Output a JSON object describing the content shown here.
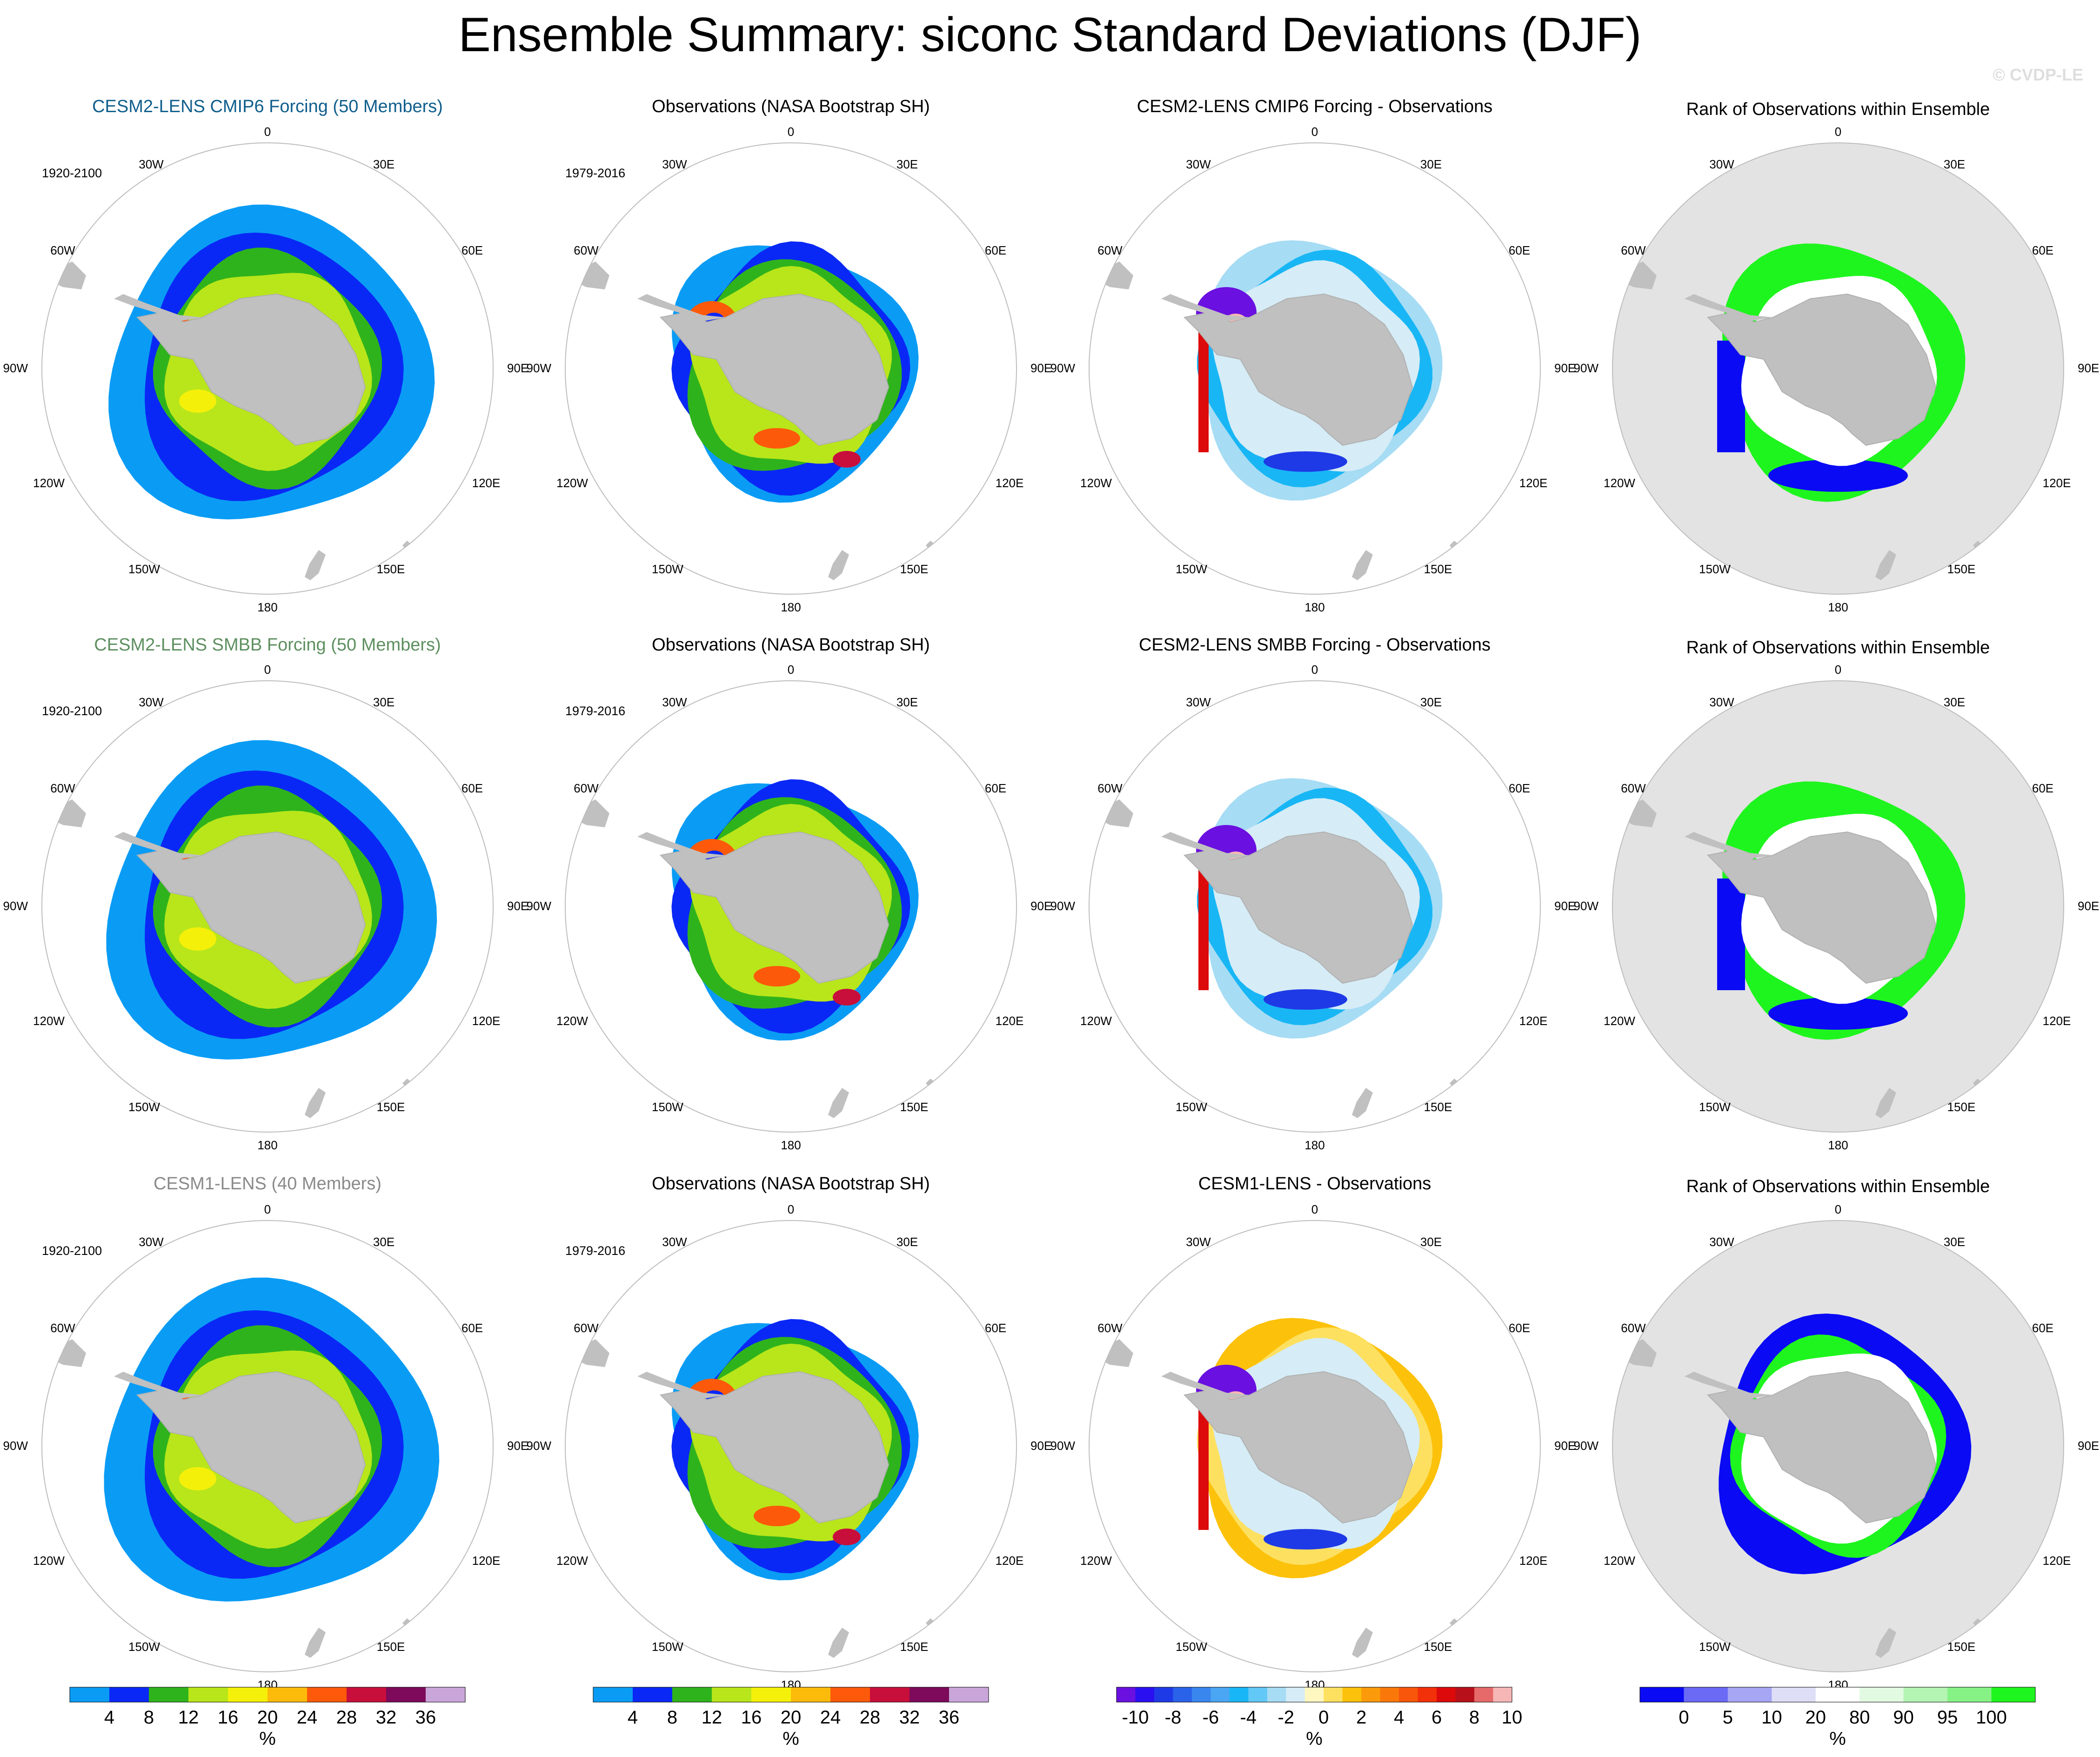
{
  "title": "Ensemble Summary: siconc Standard Deviations (DJF)",
  "watermark": "© CVDP-LE",
  "rows": [
    {
      "model_title": "CESM2-LENS CMIP6 Forcing (50 Members)",
      "model_title_color": "#0f5e8c",
      "model_period": "1920-2100",
      "obs_title": "Observations (NASA Bootstrap SH)",
      "obs_period": "1979-2016",
      "diff_title": "CESM2-LENS CMIP6 Forcing - Observations",
      "rank_title": "Rank of Observations within Ensemble"
    },
    {
      "model_title": "CESM2-LENS SMBB Forcing (50 Members)",
      "model_title_color": "#5d8f5f",
      "model_period": "1920-2100",
      "obs_title": "Observations (NASA Bootstrap SH)",
      "obs_period": "1979-2016",
      "diff_title": "CESM2-LENS SMBB Forcing - Observations",
      "rank_title": "Rank of Observations within Ensemble"
    },
    {
      "model_title": "CESM1-LENS (40 Members)",
      "model_title_color": "#8a8a8a",
      "model_period": "1920-2100",
      "obs_title": "Observations (NASA Bootstrap SH)",
      "obs_period": "1979-2016",
      "diff_title": "CESM1-LENS - Observations",
      "rank_title": "Rank of Observations within Ensemble"
    }
  ],
  "map_labels": {
    "top": "0",
    "bottom": "180",
    "left": "90W",
    "right": "90E",
    "tl1": "30W",
    "tl2": "60W",
    "bl1": "120W",
    "bl2": "150W",
    "tr1": "30E",
    "tr2": "60E",
    "br1": "120E",
    "br2": "150E"
  },
  "chart_data": [
    {
      "type": "heatmap",
      "panel": "std-dev colorbar (model and observations)",
      "units": "%",
      "tick_labels": [
        "4",
        "8",
        "12",
        "16",
        "20",
        "24",
        "28",
        "32",
        "36"
      ],
      "colors": [
        "#0a9cf5",
        "#0a28f5",
        "#2fb31c",
        "#b8e61a",
        "#f5f00a",
        "#fcbb0a",
        "#fc5a0a",
        "#c80e3a",
        "#7d0a5a",
        "#c9a6d9"
      ]
    },
    {
      "type": "heatmap",
      "panel": "difference colorbar",
      "units": "%",
      "tick_labels": [
        "-10",
        "-8",
        "-6",
        "-4",
        "-2",
        "0",
        "2",
        "4",
        "6",
        "8",
        "10"
      ],
      "colors": [
        "#6a10e0",
        "#2a10f0",
        "#1e3ae6",
        "#2a62ea",
        "#3a86ef",
        "#4aa6f2",
        "#19b6f5",
        "#62c8f6",
        "#a6dcf4",
        "#d6ecf6",
        "#fff7c0",
        "#fde060",
        "#fcc10a",
        "#fb9a0a",
        "#fa780a",
        "#f8560a",
        "#f2300a",
        "#dc0a0a",
        "#b8101a",
        "#e66a6a",
        "#f7b6b6"
      ]
    },
    {
      "type": "heatmap",
      "panel": "rank colorbar",
      "units": "%",
      "tick_labels": [
        "0",
        "5",
        "10",
        "20",
        "80",
        "90",
        "95",
        "100"
      ],
      "colors": [
        "#0a0af5",
        "#6a6af5",
        "#a6a6f5",
        "#dedef7",
        "#ffffff",
        "#e2fae2",
        "#b4f5b4",
        "#86f286",
        "#1ef51e"
      ]
    }
  ]
}
